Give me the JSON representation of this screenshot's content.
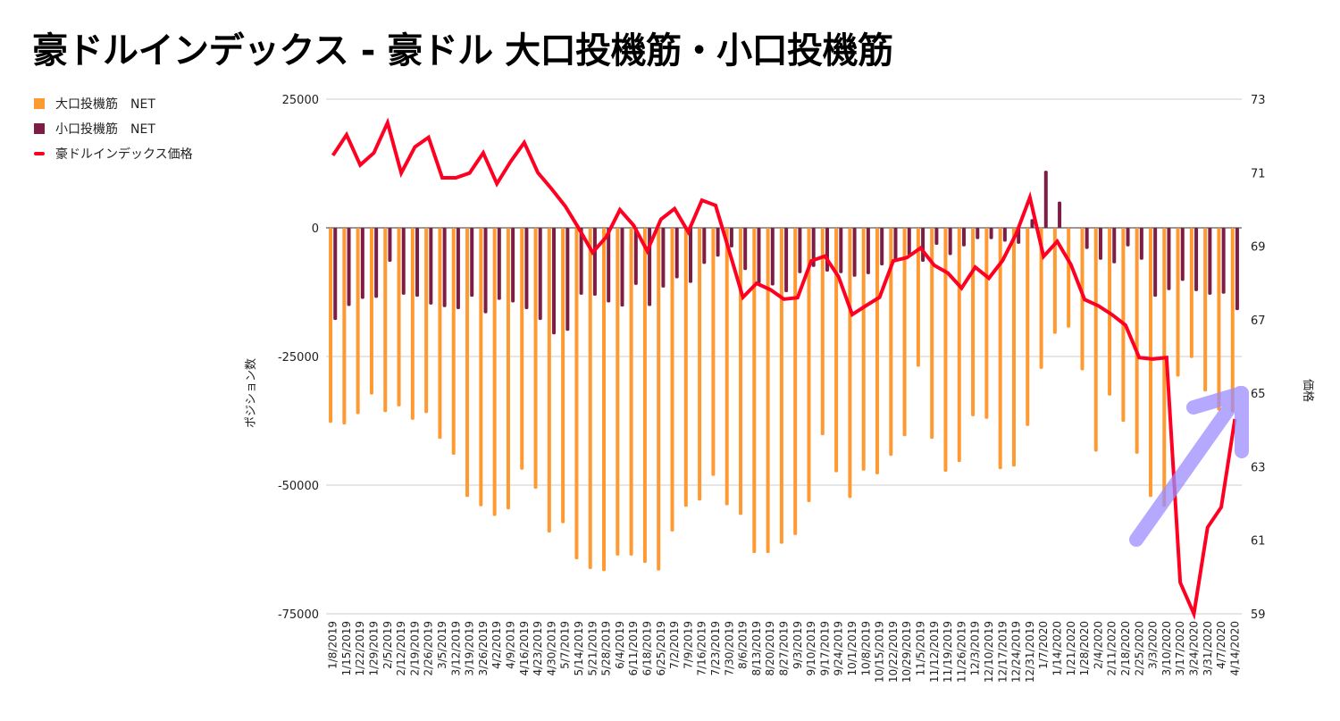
{
  "chart_data": {
    "type": "bar+line",
    "title": "豪ドルインデックス - 豪ドル 大口投機筋・小口投機筋",
    "xlabel": "",
    "ylabel": "ポジション数",
    "y2label": "価格",
    "ylim": [
      -75000,
      25000
    ],
    "y2lim": [
      59,
      73
    ],
    "yticks": [
      "25000",
      "0",
      "-25000",
      "-50000",
      "-75000"
    ],
    "y2ticks": [
      "73",
      "71",
      "69",
      "67",
      "65",
      "63",
      "61",
      "59"
    ],
    "legend_position": "top-left",
    "grid": true,
    "categories": [
      "1/8/2019",
      "1/15/2019",
      "1/22/2019",
      "1/29/2019",
      "2/5/2019",
      "2/12/2019",
      "2/19/2019",
      "2/26/2019",
      "3/5/2019",
      "3/12/2019",
      "3/19/2019",
      "3/26/2019",
      "4/2/2019",
      "4/9/2019",
      "4/16/2019",
      "4/23/2019",
      "4/30/2019",
      "5/7/2019",
      "5/14/2019",
      "5/21/2019",
      "5/28/2019",
      "6/4/2019",
      "6/11/2019",
      "6/18/2019",
      "6/25/2019",
      "7/2/2019",
      "7/9/2019",
      "7/16/2019",
      "7/23/2019",
      "7/30/2019",
      "8/6/2019",
      "8/13/2019",
      "8/20/2019",
      "8/27/2019",
      "9/3/2019",
      "9/10/2019",
      "9/17/2019",
      "9/24/2019",
      "10/1/2019",
      "10/8/2019",
      "10/15/2019",
      "10/22/2019",
      "10/29/2019",
      "11/5/2019",
      "11/12/2019",
      "11/19/2019",
      "11/26/2019",
      "12/3/2019",
      "12/10/2019",
      "12/17/2019",
      "12/24/2019",
      "12/31/2019",
      "1/7/2020",
      "1/14/2020",
      "1/21/2020",
      "1/28/2020",
      "2/4/2020",
      "2/11/2020",
      "2/18/2020",
      "2/25/2020",
      "3/3/2020",
      "3/10/2020",
      "3/17/2020",
      "3/24/2020",
      "3/31/2020",
      "4/7/2020",
      "4/14/2020"
    ],
    "series": [
      {
        "name": "大口投機筋　NET",
        "type": "bar",
        "axis": "left",
        "color": "#ff9a33",
        "values": [
          -37900,
          -38200,
          -36200,
          -32400,
          -35800,
          -34700,
          -37300,
          -36000,
          -41000,
          -44100,
          -52300,
          -54100,
          -56000,
          -54700,
          -47000,
          -50700,
          -59200,
          -57400,
          -64400,
          -66300,
          -66700,
          -63700,
          -63700,
          -65100,
          -66600,
          -59000,
          -54200,
          -53000,
          -48200,
          -53900,
          -55800,
          -63200,
          -63200,
          -61400,
          -59700,
          -53300,
          -40300,
          -47500,
          -52500,
          -47200,
          -47900,
          -44300,
          -40500,
          -27000,
          -41000,
          -47400,
          -45500,
          -36600,
          -37100,
          -46900,
          -46400,
          -38500,
          -27400,
          -20600,
          -19400,
          -27700,
          -43500,
          -32600,
          -37700,
          -43900,
          -52300,
          -54200,
          -28900,
          -25300,
          -31800,
          -35500,
          -35800
        ]
      },
      {
        "name": "小口投機筋　NET",
        "type": "bar",
        "axis": "left",
        "color": "#7d1d45",
        "values": [
          -17900,
          -15200,
          -13800,
          -13600,
          -6600,
          -13000,
          -13400,
          -14900,
          -15400,
          -15800,
          -13400,
          -16600,
          -14000,
          -14500,
          -15800,
          -17900,
          -20700,
          -20000,
          -13000,
          -13200,
          -14500,
          -15300,
          -11100,
          -15200,
          -11600,
          -9800,
          -10700,
          -7000,
          -5600,
          -3800,
          -8200,
          -10800,
          -11200,
          -12500,
          -8800,
          -7600,
          -8500,
          -8800,
          -9500,
          -9000,
          -7300,
          -6300,
          -5300,
          -6600,
          -3300,
          -5300,
          -3600,
          -2200,
          -2200,
          -2700,
          -3100,
          1700,
          11100,
          5100,
          0,
          -4100,
          -6200,
          -6900,
          -3600,
          -6200,
          -13400,
          -12100,
          -10300,
          -12300,
          -13000,
          -12800,
          -16000
        ]
      },
      {
        "name": "豪ドルインデックス価格",
        "type": "line",
        "axis": "right",
        "color": "#ff0022",
        "values": [
          71.47,
          72.03,
          71.21,
          71.54,
          72.36,
          70.99,
          71.7,
          71.96,
          70.86,
          70.86,
          70.99,
          71.54,
          70.7,
          71.3,
          71.82,
          71.0,
          70.56,
          70.09,
          69.48,
          68.83,
          69.25,
          69.99,
          69.57,
          68.87,
          69.73,
          70.02,
          69.39,
          70.25,
          70.11,
          68.87,
          67.61,
          67.99,
          67.82,
          67.56,
          67.6,
          68.6,
          68.73,
          68.17,
          67.14,
          67.38,
          67.61,
          68.6,
          68.69,
          68.95,
          68.48,
          68.27,
          67.86,
          68.43,
          68.13,
          68.61,
          69.34,
          70.33,
          68.72,
          69.13,
          68.5,
          67.55,
          67.38,
          67.14,
          66.85,
          65.97,
          65.93,
          65.97,
          59.85,
          59.0,
          61.35,
          61.9,
          64.3
        ]
      }
    ],
    "annotation": {
      "type": "arrow",
      "color": "#9b8cff",
      "meaning": "upward trend"
    }
  }
}
